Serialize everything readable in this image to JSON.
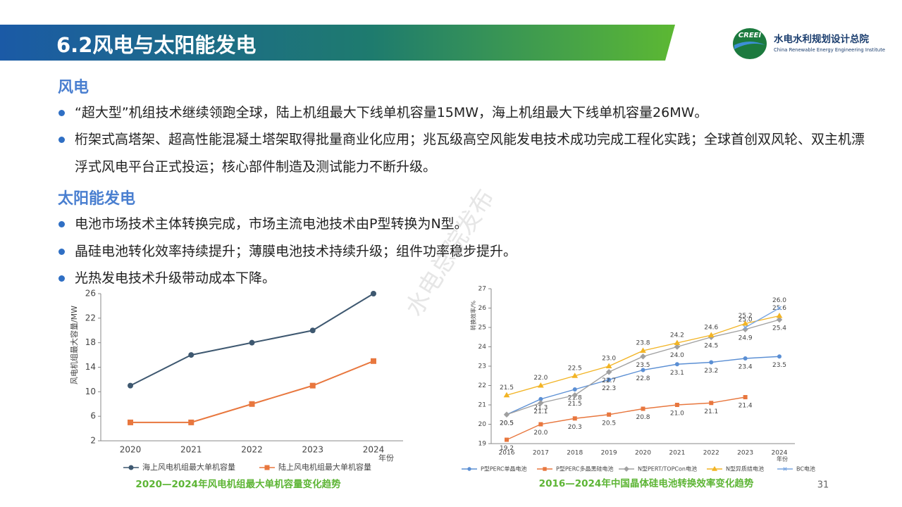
{
  "header": {
    "title": "6.2风电与太阳能发电",
    "logo_mark": "CREEI",
    "org_name": "水电水利规划设计总院",
    "org_name_en": "China Renewable Energy Engineering Institute"
  },
  "sections": [
    {
      "heading": "风电",
      "bullets": [
        "“超大型”机组技术继续领跑全球，陆上机组最大下线单机容量15MW，海上机组最大下线单机容量26MW。",
        "桁架式高塔架、超高性能混凝土塔架取得批量商业化应用；兆瓦级高空风能发电技术成功完成工程化实践；全球首创双风轮、双主机漂浮式风电平台正式投运；核心部件制造及测试能力不断升级。"
      ]
    },
    {
      "heading": "太阳能发电",
      "bullets": [
        "电池市场技术主体转换完成，市场主流电池技术由P型转换为N型。",
        "晶硅电池转化效率持续提升；薄膜电池技术持续升级；组件功率稳步提升。",
        "光热发电技术升级带动成本下降。"
      ]
    }
  ],
  "watermark": "水电总院发布",
  "page_number": "31",
  "chart_data": [
    {
      "type": "line",
      "title": "2020—2024年风电机组最大单机容量变化趋势",
      "y_label": "风电机组最大容量/MW",
      "x_label": "年份",
      "categories": [
        "2020",
        "2021",
        "2022",
        "2023",
        "2024"
      ],
      "ylim": [
        2,
        26
      ],
      "yticks": [
        2,
        6,
        10,
        14,
        18,
        22,
        26
      ],
      "grid": false,
      "series": [
        {
          "name": "海上风电机组最大单机容量",
          "color": "#3e5870",
          "marker": "circle",
          "values": [
            11,
            16,
            18,
            20,
            26
          ]
        },
        {
          "name": "陆上风电机组最大单机容量",
          "color": "#e8773e",
          "marker": "square",
          "values": [
            5,
            5,
            8,
            11,
            15
          ]
        }
      ]
    },
    {
      "type": "line",
      "title": "2016—2024年中国晶体硅电池转换效率变化趋势",
      "y_label": "转换效率/%",
      "x_label": "年份",
      "categories": [
        "2016",
        "2017",
        "2018",
        "2019",
        "2020",
        "2021",
        "2022",
        "2023",
        "2024"
      ],
      "ylim": [
        19,
        27
      ],
      "yticks": [
        19,
        20,
        21,
        22,
        23,
        24,
        25,
        26,
        27
      ],
      "grid": false,
      "series": [
        {
          "name": "P型PERC单晶电池",
          "color": "#5b8fd4",
          "marker": "circle",
          "values": [
            20.5,
            21.3,
            21.8,
            22.3,
            22.8,
            23.1,
            23.2,
            23.4,
            23.5
          ],
          "value_labels": [
            "20.5",
            "21.3",
            "21.8",
            "22.3",
            "22.8",
            "23.1",
            "23.2",
            "23.4",
            "23.5"
          ]
        },
        {
          "name": "P型PERC多晶黑硅电池",
          "color": "#e8773e",
          "marker": "square",
          "values": [
            19.2,
            20.0,
            20.3,
            20.5,
            20.8,
            21.0,
            21.1,
            21.4,
            null
          ],
          "value_labels": [
            "19.2",
            "20.0",
            "20.3",
            "20.5",
            "20.8",
            "21.0",
            "21.1",
            "21.4",
            null
          ]
        },
        {
          "name": "N型PERT/TOPCon电池",
          "color": "#a0a0a0",
          "marker": "diamond",
          "values": [
            20.5,
            21.1,
            21.5,
            22.7,
            23.5,
            24.0,
            24.5,
            24.9,
            25.4
          ],
          "value_labels": [
            "20.5",
            "21.1",
            "21.5",
            "22.7",
            "23.5",
            "24.0",
            "24.5",
            "24.9",
            "25.4"
          ]
        },
        {
          "name": "N型异质结电池",
          "color": "#f2b425",
          "marker": "triangle",
          "values": [
            21.5,
            22.0,
            22.5,
            23.0,
            23.8,
            24.2,
            24.6,
            25.2,
            25.6
          ],
          "value_labels": [
            "21.5",
            "22.0",
            "22.5",
            "23.0",
            "23.8",
            "24.2",
            "24.6",
            "25.2",
            "25.6"
          ]
        },
        {
          "name": "BC电池",
          "color": "#7aa6e0",
          "marker": "x",
          "values": [
            null,
            null,
            null,
            null,
            null,
            null,
            null,
            25.0,
            26.0
          ],
          "value_labels": [
            null,
            null,
            null,
            null,
            null,
            null,
            null,
            "25.0",
            "26.0"
          ]
        }
      ]
    }
  ]
}
